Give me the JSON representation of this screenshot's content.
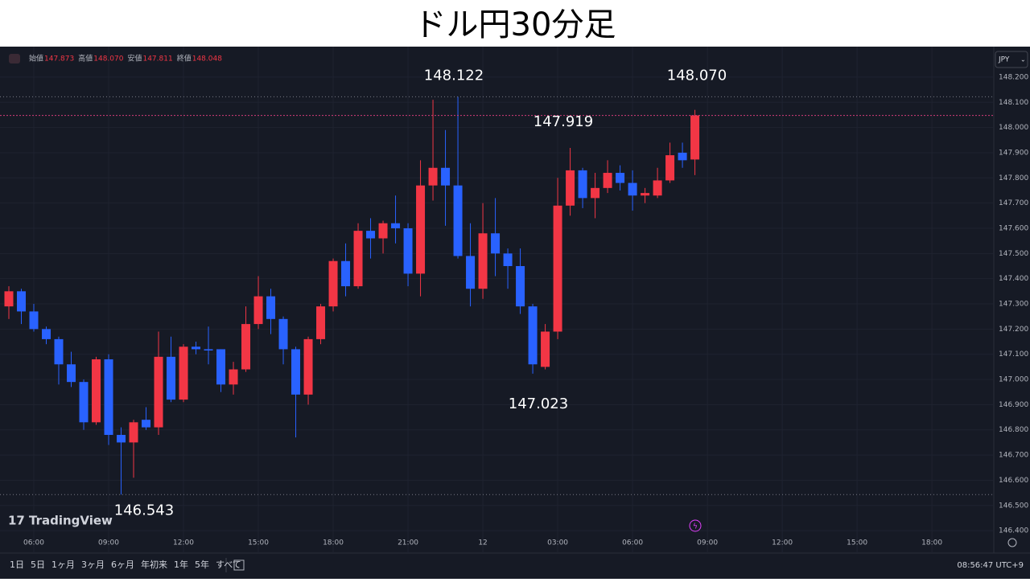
{
  "chart_data": {
    "type": "candlestick",
    "title": "ドル円30分足",
    "up_color": "#f23645",
    "down_color": "#2962ff",
    "grid": true,
    "x": [
      5,
      5.5,
      6,
      6.5,
      7,
      7.5,
      8,
      8.5,
      9,
      9.5,
      10,
      10.5,
      11,
      11.5,
      12,
      12.5,
      13,
      13.5,
      14,
      14.5,
      15,
      15.5,
      16,
      16.5,
      17,
      17.5,
      18,
      18.5,
      19,
      19.5,
      20,
      20.5,
      21,
      21.5,
      22,
      22.5,
      23,
      23.5,
      24,
      24.5,
      25,
      25.5,
      26,
      26.5,
      27,
      27.5,
      28,
      28.5,
      29,
      29.5,
      30,
      30.5,
      31,
      31.5,
      32,
      32.5
    ],
    "open": [
      147.29,
      147.35,
      147.27,
      147.2,
      147.16,
      147.06,
      146.99,
      146.83,
      147.08,
      146.78,
      146.75,
      146.84,
      146.81,
      147.09,
      146.92,
      147.13,
      147.12,
      147.12,
      146.98,
      147.04,
      147.22,
      147.33,
      147.24,
      147.12,
      146.94,
      147.16,
      147.29,
      147.47,
      147.37,
      147.59,
      147.56,
      147.62,
      147.6,
      147.42,
      147.77,
      147.84,
      147.77,
      147.49,
      147.36,
      147.58,
      147.5,
      147.45,
      147.29,
      147.05,
      147.19,
      147.69,
      147.83,
      147.72,
      147.76,
      147.82,
      147.78,
      147.73,
      147.73,
      147.79,
      147.9,
      147.873
    ],
    "high": [
      147.37,
      147.36,
      147.3,
      147.21,
      147.17,
      147.11,
      147.0,
      147.09,
      147.1,
      146.81,
      146.84,
      146.89,
      147.19,
      147.17,
      147.14,
      147.15,
      147.21,
      147.12,
      147.07,
      147.29,
      147.41,
      147.36,
      147.25,
      147.13,
      147.17,
      147.3,
      147.48,
      147.54,
      147.62,
      147.64,
      147.63,
      147.73,
      147.62,
      147.87,
      148.11,
      147.99,
      148.122,
      147.62,
      147.7,
      147.72,
      147.52,
      147.52,
      147.3,
      147.22,
      147.8,
      147.919,
      147.84,
      147.82,
      147.87,
      147.85,
      147.83,
      147.76,
      147.84,
      147.94,
      147.94,
      148.07
    ],
    "low": [
      147.24,
      147.22,
      147.19,
      147.14,
      146.98,
      146.97,
      146.8,
      146.82,
      146.74,
      146.543,
      146.61,
      146.8,
      146.78,
      146.91,
      146.91,
      147.1,
      147.06,
      146.95,
      146.94,
      147.03,
      147.2,
      147.18,
      147.06,
      146.77,
      146.9,
      147.14,
      147.27,
      147.33,
      147.36,
      147.48,
      147.5,
      147.54,
      147.37,
      147.33,
      147.71,
      147.61,
      147.48,
      147.29,
      147.32,
      147.41,
      147.36,
      147.26,
      147.023,
      147.04,
      147.16,
      147.65,
      147.68,
      147.64,
      147.74,
      147.75,
      147.67,
      147.7,
      147.72,
      147.78,
      147.84,
      147.811
    ],
    "close": [
      147.35,
      147.27,
      147.2,
      147.16,
      147.06,
      146.99,
      146.83,
      147.08,
      146.78,
      146.75,
      146.83,
      146.81,
      147.09,
      146.92,
      147.13,
      147.12,
      147.115,
      146.98,
      147.04,
      147.22,
      147.33,
      147.24,
      147.12,
      146.94,
      147.16,
      147.29,
      147.47,
      147.37,
      147.59,
      147.56,
      147.62,
      147.6,
      147.42,
      147.77,
      147.84,
      147.77,
      147.49,
      147.36,
      147.58,
      147.5,
      147.45,
      147.29,
      147.06,
      147.19,
      147.69,
      147.83,
      147.72,
      147.76,
      147.82,
      147.78,
      147.73,
      147.74,
      147.79,
      147.89,
      147.87,
      148.048
    ],
    "xlim": [
      4.645,
      44.48
    ],
    "xticks": [
      {
        "value": 6,
        "label": "06:00"
      },
      {
        "value": 9,
        "label": "09:00"
      },
      {
        "value": 12,
        "label": "12:00"
      },
      {
        "value": 15,
        "label": "15:00"
      },
      {
        "value": 18,
        "label": "18:00"
      },
      {
        "value": 21,
        "label": "21:00"
      },
      {
        "value": 24,
        "label": "12"
      },
      {
        "value": 27,
        "label": "03:00"
      },
      {
        "value": 30,
        "label": "06:00"
      },
      {
        "value": 33,
        "label": "09:00"
      },
      {
        "value": 36,
        "label": "12:00"
      },
      {
        "value": 39,
        "label": "15:00"
      },
      {
        "value": 42,
        "label": "18:00"
      }
    ],
    "ylim": [
      146.311,
      148.321
    ],
    "yticks": [
      {
        "value": 146.4,
        "label": "146.400"
      },
      {
        "value": 146.5,
        "label": "146.500"
      },
      {
        "value": 146.6,
        "label": "146.600"
      },
      {
        "value": 146.7,
        "label": "146.700"
      },
      {
        "value": 146.8,
        "label": "146.800"
      },
      {
        "value": 146.9,
        "label": "146.900"
      },
      {
        "value": 147,
        "label": "147.000"
      },
      {
        "value": 147.1,
        "label": "147.100"
      },
      {
        "value": 147.2,
        "label": "147.200"
      },
      {
        "value": 147.3,
        "label": "147.300"
      },
      {
        "value": 147.4,
        "label": "147.400"
      },
      {
        "value": 147.5,
        "label": "147.500"
      },
      {
        "value": 147.6,
        "label": "147.600"
      },
      {
        "value": 147.7,
        "label": "147.700"
      },
      {
        "value": 147.8,
        "label": "147.800"
      },
      {
        "value": 147.9,
        "label": "147.900"
      },
      {
        "value": 148,
        "label": "148.000"
      },
      {
        "value": 148.1,
        "label": "148.100"
      },
      {
        "value": 148.2,
        "label": "148.200"
      }
    ],
    "annotations": [
      148.122,
      {
        "value": 148.07,
        "label": "148.070"
      },
      147.919,
      147.023,
      146.543
    ]
  },
  "ui": {
    "ohlc_legend": [
      {
        "label": "始値",
        "value": "147.873"
      },
      {
        "label": "高値",
        "value": "148.070"
      },
      {
        "label": "安値",
        "value": "147.811"
      },
      {
        "label": "終値",
        "value": "148.048"
      }
    ],
    "currency": "JPY",
    "brand": "TradingView",
    "ranges": [
      "1日",
      "5日",
      "1ヶ月",
      "3ヶ月",
      "6ヶ月",
      "年初来",
      "1年",
      "5年",
      "すべて"
    ],
    "clock": "08:56:47 UTC+9"
  }
}
